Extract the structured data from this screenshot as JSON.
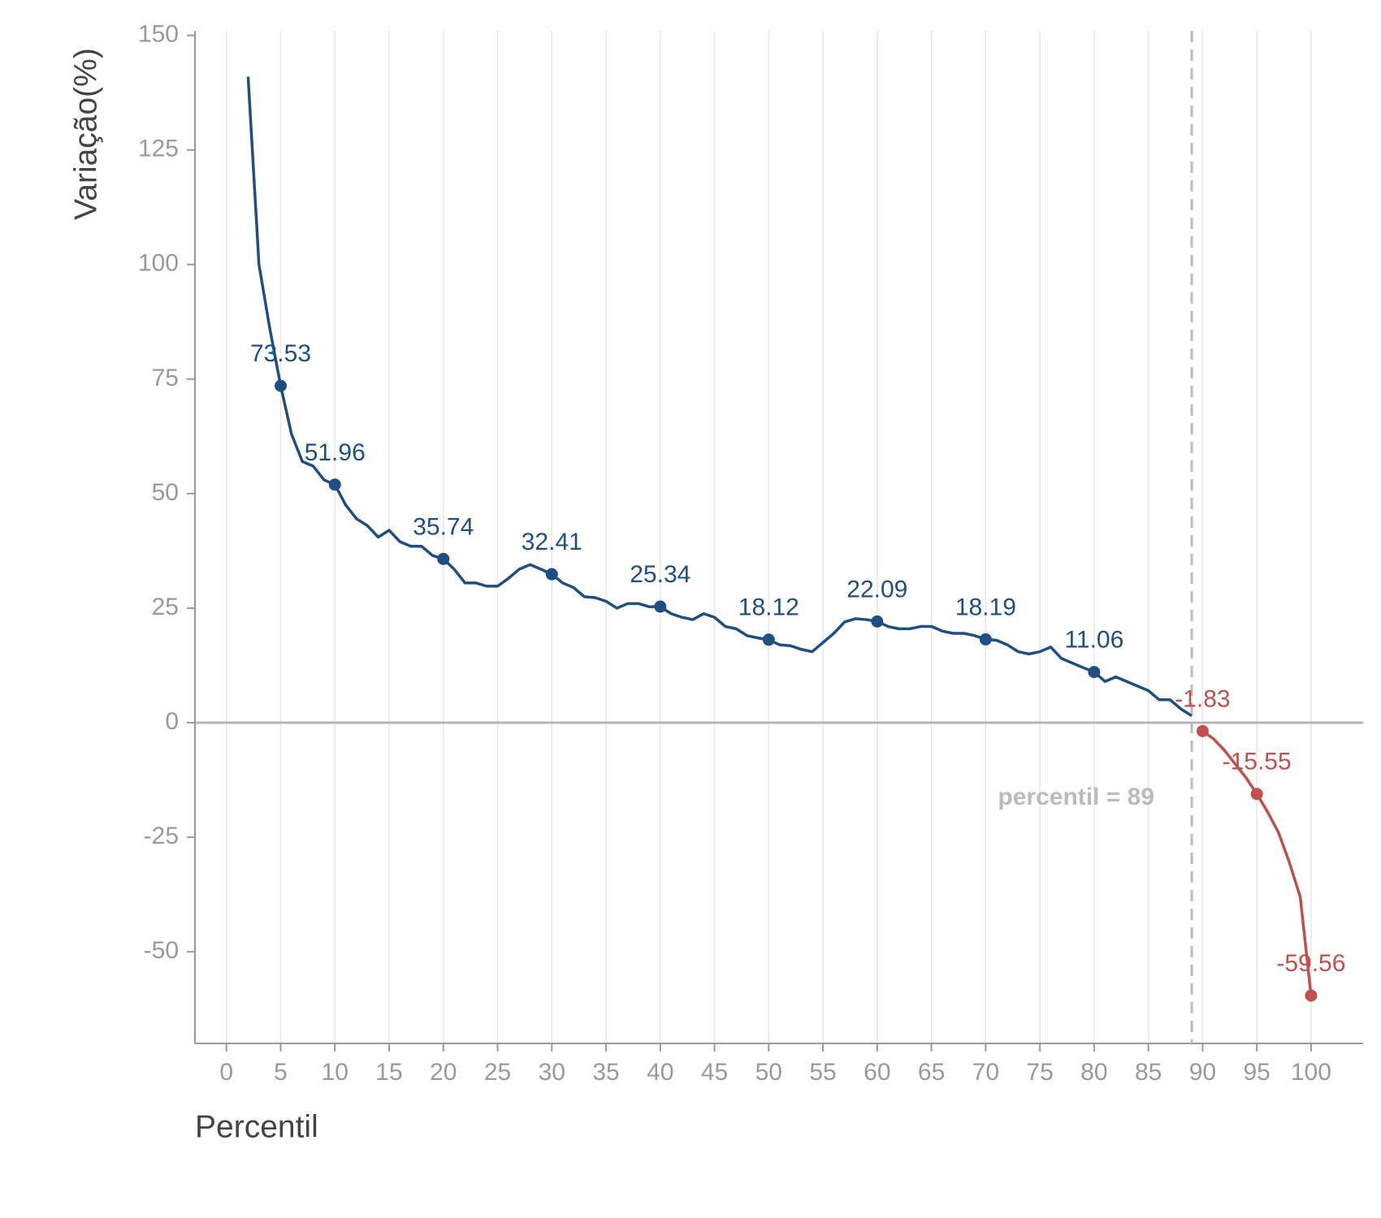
{
  "chart_data": {
    "type": "line",
    "x_label": "Percentil",
    "y_label": "Variação(%)",
    "xlim": [
      -2.9,
      104.8
    ],
    "ylim": [
      -70,
      151
    ],
    "xticks": [
      0,
      5,
      10,
      15,
      20,
      25,
      30,
      35,
      40,
      45,
      50,
      55,
      60,
      65,
      70,
      75,
      80,
      85,
      90,
      95,
      100
    ],
    "yticks": [
      -50,
      -25,
      0,
      25,
      50,
      75,
      100,
      125,
      150
    ],
    "grid": "x",
    "series": [
      {
        "color": "#1f4e82",
        "x": [
          2,
          3,
          4,
          5,
          6,
          7,
          8,
          9,
          10,
          11,
          12,
          13,
          14,
          15,
          16,
          17,
          18,
          19,
          20,
          21,
          22,
          23,
          24,
          25,
          26,
          27,
          28,
          29,
          30,
          31,
          32,
          33,
          34,
          35,
          36,
          37,
          38,
          39,
          40,
          41,
          42,
          43,
          44,
          45,
          46,
          47,
          48,
          49,
          50,
          51,
          52,
          53,
          54,
          55,
          56,
          57,
          58,
          59,
          60,
          61,
          62,
          63,
          64,
          65,
          66,
          67,
          68,
          69,
          70,
          71,
          72,
          73,
          74,
          75,
          76,
          77,
          78,
          79,
          80,
          81,
          82,
          83,
          84,
          85,
          86,
          87,
          88,
          89
        ],
        "values": [
          141,
          100,
          86,
          73.53,
          63,
          57,
          56,
          53,
          51.96,
          47.5,
          44.5,
          43,
          40.5,
          42,
          39.5,
          38.5,
          38.5,
          36.5,
          35.74,
          33.5,
          30.5,
          30.5,
          29.8,
          29.8,
          31.5,
          33.5,
          34.5,
          33.5,
          32.41,
          30.5,
          29.5,
          27.5,
          27.3,
          26.5,
          25,
          26,
          26,
          25.3,
          25.34,
          23.8,
          23,
          22.5,
          23.8,
          23,
          21,
          20.5,
          19,
          18.5,
          18.12,
          17,
          16.8,
          16,
          15.5,
          17.5,
          19.5,
          22,
          22.7,
          22.5,
          22.09,
          21,
          20.5,
          20.5,
          21,
          21,
          20,
          19.5,
          19.5,
          19,
          18.19,
          18,
          17,
          15.5,
          15,
          15.5,
          16.5,
          14,
          13,
          12,
          11.06,
          9,
          10,
          9,
          8,
          7,
          5,
          5,
          3,
          1.5
        ]
      },
      {
        "color": "#c0504d",
        "x": [
          90,
          91,
          92,
          93,
          94,
          95,
          96,
          97,
          98,
          99,
          100
        ],
        "values": [
          -1.83,
          -3.5,
          -6,
          -9,
          -12,
          -15.55,
          -19.5,
          -24,
          -30.5,
          -38,
          -59.56
        ]
      }
    ],
    "highlights": [
      {
        "color": "#1f4e82",
        "x": [
          5,
          10,
          20,
          30,
          40,
          50,
          60,
          70,
          80
        ],
        "values": [
          73.53,
          51.96,
          35.74,
          32.41,
          25.34,
          18.12,
          22.09,
          18.19,
          11.06
        ]
      },
      {
        "color": "#c0504d",
        "x": [
          90,
          95,
          100
        ],
        "values": [
          -1.83,
          -15.55,
          -59.56
        ]
      }
    ],
    "vline": {
      "x": 89,
      "label": "percentil = 89",
      "color": "#bbbbbb"
    }
  }
}
